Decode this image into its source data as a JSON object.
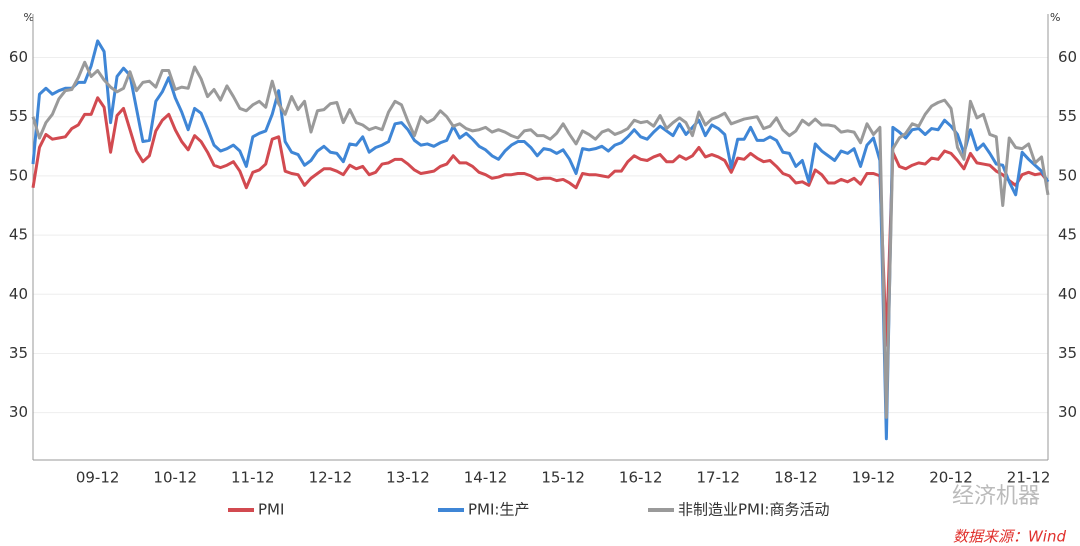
{
  "chart_data": {
    "type": "line",
    "y_label": "%",
    "y2_label": "%",
    "categories": [
      null,
      null,
      null,
      null,
      null,
      null,
      null,
      null,
      null,
      null,
      "09-12",
      null,
      null,
      null,
      null,
      null,
      null,
      null,
      null,
      null,
      null,
      null,
      "10-12",
      null,
      null,
      null,
      null,
      null,
      null,
      null,
      null,
      null,
      null,
      null,
      "11-12",
      null,
      null,
      null,
      null,
      null,
      null,
      null,
      null,
      null,
      null,
      null,
      "12-12",
      null,
      null,
      null,
      null,
      null,
      null,
      null,
      null,
      null,
      null,
      null,
      "13-12",
      null,
      null,
      null,
      null,
      null,
      null,
      null,
      null,
      null,
      null,
      null,
      "14-12",
      null,
      null,
      null,
      null,
      null,
      null,
      null,
      null,
      null,
      null,
      null,
      "15-12",
      null,
      null,
      null,
      null,
      null,
      null,
      null,
      null,
      null,
      null,
      null,
      "16-12",
      null,
      null,
      null,
      null,
      null,
      null,
      null,
      null,
      null,
      null,
      null,
      "17-12",
      null,
      null,
      null,
      null,
      null,
      null,
      null,
      null,
      null,
      null,
      null,
      "18-12",
      null,
      null,
      null,
      null,
      null,
      null,
      null,
      null,
      null,
      null,
      null,
      "19-12",
      null,
      null,
      null,
      null,
      null,
      null,
      null,
      null,
      null,
      null,
      null,
      "20-12",
      null,
      null,
      null,
      null,
      null,
      null,
      null,
      null,
      null,
      null,
      null,
      "21-12",
      null,
      null,
      null
    ],
    "series": [
      {
        "name": "PMI",
        "color": "#d24a50",
        "values": [
          49.0,
          52.4,
          53.5,
          53.1,
          53.2,
          53.3,
          54.0,
          54.3,
          55.2,
          55.2,
          56.6,
          55.8,
          52.0,
          55.1,
          55.7,
          53.9,
          52.1,
          51.2,
          51.7,
          53.8,
          54.7,
          55.2,
          53.9,
          52.9,
          52.2,
          53.4,
          52.9,
          52.0,
          50.9,
          50.7,
          50.9,
          51.2,
          50.4,
          49.0,
          50.3,
          50.5,
          51.0,
          53.1,
          53.3,
          50.4,
          50.2,
          50.1,
          49.2,
          49.8,
          50.2,
          50.6,
          50.6,
          50.4,
          50.1,
          50.9,
          50.6,
          50.8,
          50.1,
          50.3,
          51.0,
          51.1,
          51.4,
          51.4,
          51.0,
          50.5,
          50.2,
          50.3,
          50.4,
          50.8,
          51.0,
          51.7,
          51.1,
          51.1,
          50.8,
          50.3,
          50.1,
          49.8,
          49.9,
          50.1,
          50.1,
          50.2,
          50.2,
          50.0,
          49.7,
          49.8,
          49.8,
          49.6,
          49.7,
          49.4,
          49.0,
          50.2,
          50.1,
          50.1,
          50.0,
          49.9,
          50.4,
          50.4,
          51.2,
          51.7,
          51.4,
          51.3,
          51.6,
          51.8,
          51.2,
          51.2,
          51.7,
          51.4,
          51.7,
          52.4,
          51.6,
          51.8,
          51.6,
          51.3,
          50.3,
          51.5,
          51.4,
          51.9,
          51.5,
          51.2,
          51.3,
          50.8,
          50.2,
          50.0,
          49.4,
          49.5,
          49.2,
          50.5,
          50.1,
          49.4,
          49.4,
          49.7,
          49.5,
          49.8,
          49.3,
          50.2,
          50.2,
          50.0,
          35.7,
          52.0,
          50.8,
          50.6,
          50.9,
          51.1,
          51.0,
          51.5,
          51.4,
          52.1,
          51.9,
          51.3,
          50.6,
          51.9,
          51.1,
          51.0,
          50.9,
          50.4,
          50.1,
          49.6,
          49.2,
          50.1,
          50.3,
          50.1,
          50.2,
          49.5
        ]
      },
      {
        "name": "PMI:生产",
        "color": "#3f86d6",
        "values": [
          51.0,
          56.9,
          57.4,
          56.9,
          57.2,
          57.4,
          57.4,
          57.9,
          57.9,
          59.3,
          61.4,
          60.5,
          54.5,
          58.4,
          59.1,
          58.5,
          55.7,
          52.9,
          53.0,
          56.3,
          57.1,
          58.3,
          56.6,
          55.4,
          53.9,
          55.7,
          55.3,
          54.0,
          52.6,
          52.1,
          52.3,
          52.6,
          52.1,
          50.8,
          53.3,
          53.6,
          53.8,
          55.2,
          57.2,
          52.9,
          52.0,
          51.8,
          50.9,
          51.3,
          52.1,
          52.5,
          52.0,
          51.9,
          51.2,
          52.7,
          52.6,
          53.3,
          52.0,
          52.4,
          52.6,
          52.9,
          54.4,
          54.5,
          53.9,
          53.0,
          52.6,
          52.7,
          52.5,
          52.8,
          53.0,
          54.2,
          53.2,
          53.6,
          53.1,
          52.5,
          52.2,
          51.7,
          51.4,
          52.1,
          52.6,
          52.9,
          52.9,
          52.4,
          51.7,
          52.3,
          52.2,
          51.9,
          52.2,
          51.4,
          50.2,
          52.3,
          52.2,
          52.3,
          52.5,
          52.1,
          52.6,
          52.8,
          53.3,
          53.9,
          53.3,
          53.1,
          53.7,
          54.2,
          53.8,
          53.4,
          54.4,
          53.5,
          54.1,
          54.7,
          53.4,
          54.3,
          54.0,
          53.5,
          50.7,
          53.1,
          53.1,
          54.1,
          53.0,
          53.0,
          53.3,
          53.0,
          52.0,
          51.9,
          50.8,
          51.3,
          49.5,
          52.7,
          52.1,
          51.7,
          51.3,
          52.1,
          51.9,
          52.3,
          50.8,
          52.6,
          53.2,
          51.3,
          27.8,
          54.1,
          53.7,
          53.2,
          53.9,
          54.0,
          53.5,
          54.0,
          53.9,
          54.7,
          54.2,
          53.5,
          51.9,
          53.9,
          52.2,
          52.7,
          51.9,
          51.0,
          50.9,
          49.5,
          48.4,
          52.0,
          51.4,
          50.9,
          50.4,
          49.5
        ]
      },
      {
        "name": "非制造业PMI:商务活动",
        "color": "#9a9a9a",
        "values": [
          55.0,
          53.2,
          54.5,
          55.2,
          56.5,
          57.2,
          57.3,
          58.3,
          59.6,
          58.4,
          58.9,
          58.1,
          57.5,
          57.1,
          57.4,
          58.8,
          57.2,
          57.9,
          58.0,
          57.5,
          58.9,
          58.9,
          57.3,
          57.5,
          57.4,
          59.2,
          58.2,
          56.7,
          57.3,
          56.4,
          57.6,
          56.7,
          55.7,
          55.5,
          56.0,
          56.3,
          55.8,
          58.0,
          56.1,
          55.2,
          56.7,
          55.6,
          56.3,
          53.7,
          55.5,
          55.6,
          56.1,
          56.2,
          54.5,
          55.6,
          54.5,
          54.3,
          53.9,
          54.1,
          53.9,
          55.4,
          56.3,
          56.0,
          54.6,
          53.4,
          55.0,
          54.5,
          54.8,
          55.5,
          55.0,
          54.2,
          54.4,
          54.0,
          53.8,
          53.9,
          54.1,
          53.7,
          53.9,
          53.7,
          53.4,
          53.2,
          53.8,
          53.9,
          53.4,
          53.4,
          53.1,
          53.6,
          54.4,
          53.5,
          52.7,
          53.8,
          53.5,
          53.1,
          53.7,
          53.9,
          53.5,
          53.7,
          54.0,
          54.7,
          54.5,
          54.6,
          54.2,
          55.1,
          54.0,
          54.5,
          54.9,
          54.5,
          53.4,
          55.4,
          54.3,
          54.8,
          55.0,
          55.3,
          54.4,
          54.6,
          54.8,
          54.9,
          55.0,
          54.0,
          54.2,
          54.9,
          53.9,
          53.4,
          53.8,
          54.7,
          54.3,
          54.8,
          54.3,
          54.3,
          54.2,
          53.7,
          53.8,
          53.7,
          52.8,
          54.4,
          53.5,
          54.1,
          29.6,
          52.3,
          53.2,
          53.6,
          54.4,
          54.2,
          55.2,
          55.9,
          56.2,
          56.4,
          55.7,
          52.4,
          51.4,
          56.3,
          54.9,
          55.2,
          53.5,
          53.3,
          47.5,
          53.2,
          52.4,
          52.3,
          52.7,
          51.1,
          51.6,
          48.4
        ]
      }
    ],
    "ylim": [
      26,
      63
    ],
    "yticks": [
      30,
      35,
      40,
      45,
      50,
      55,
      60
    ],
    "y2lim": [
      26,
      63
    ],
    "y2ticks": [
      30,
      35,
      40,
      45,
      50,
      55,
      60
    ],
    "grid": true,
    "legend": "bottom",
    "watermark": "经济机器",
    "source": "数据来源：Wind"
  }
}
